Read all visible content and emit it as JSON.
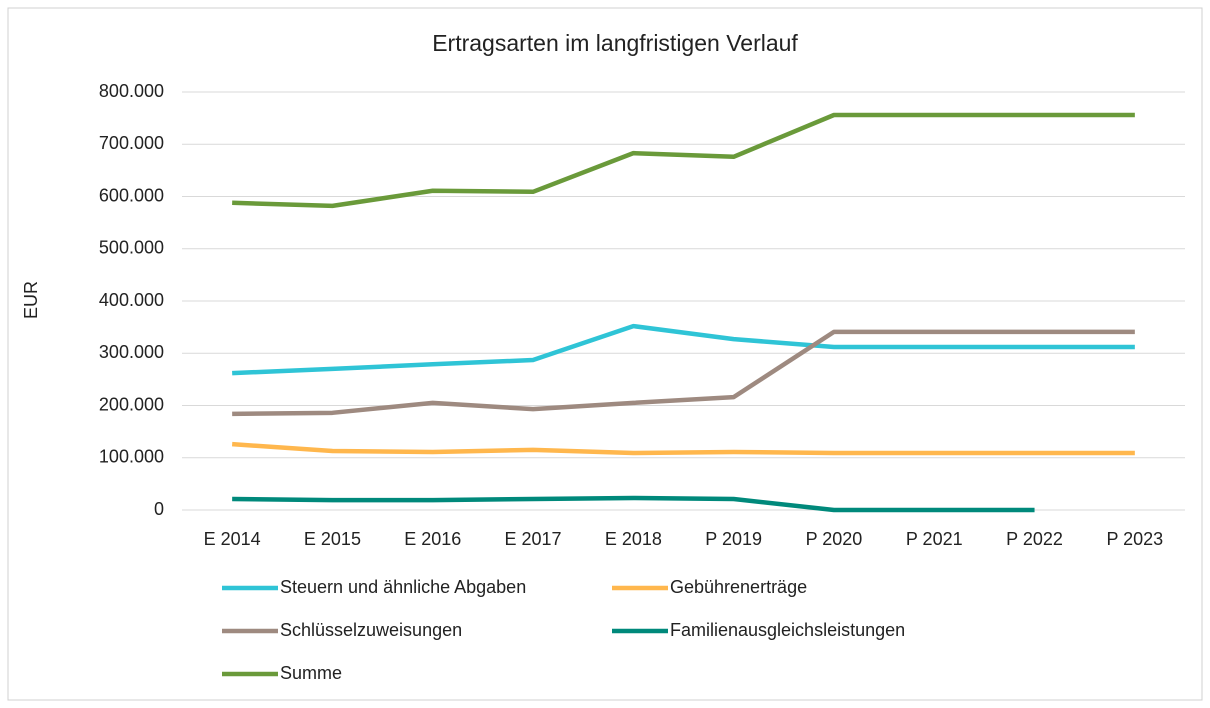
{
  "chart_data": {
    "type": "line",
    "title": "Ertragsarten im langfristigen Verlauf",
    "ylabel": "EUR",
    "categories": [
      "E 2014",
      "E 2015",
      "E 2016",
      "E 2017",
      "E 2018",
      "P 2019",
      "P 2020",
      "P 2021",
      "P 2022",
      "P 2023"
    ],
    "series": [
      {
        "name": "Steuern und ähnliche Abgaben",
        "color": "#2fc4d6",
        "values": [
          262000,
          270000,
          279000,
          287000,
          352000,
          327000,
          312000,
          312000,
          312000,
          312000
        ]
      },
      {
        "name": "Gebührenerträge",
        "color": "#ffb74d",
        "values": [
          126000,
          113000,
          111000,
          115000,
          109000,
          111000,
          109000,
          109000,
          109000,
          109000
        ]
      },
      {
        "name": "Schlüsselzuweisungen",
        "color": "#9e8a80",
        "values": [
          184000,
          186000,
          205000,
          193000,
          205000,
          216000,
          341000,
          341000,
          341000,
          341000
        ]
      },
      {
        "name": "Familienausgleichsleistungen",
        "color": "#00897b",
        "values": [
          21000,
          19000,
          19000,
          21000,
          23000,
          21000,
          0,
          0,
          0,
          null
        ]
      },
      {
        "name": "Summe",
        "color": "#6a9a3a",
        "values": [
          588000,
          582000,
          611000,
          609000,
          683000,
          676000,
          756000,
          756000,
          756000,
          756000
        ]
      }
    ],
    "ylim": [
      0,
      800000
    ],
    "yticks": [
      0,
      {
        "value": 100000,
        "label": "100.000"
      },
      {
        "value": 200000,
        "label": "200.000"
      },
      {
        "value": 300000,
        "label": "300.000"
      },
      {
        "value": 400000,
        "label": "400.000"
      },
      {
        "value": 500000,
        "label": "500.000"
      },
      {
        "value": 600000,
        "label": "600.000"
      },
      {
        "value": 700000,
        "label": "700.000"
      },
      {
        "value": 800000,
        "label": "800.000"
      }
    ],
    "grid": true
  }
}
